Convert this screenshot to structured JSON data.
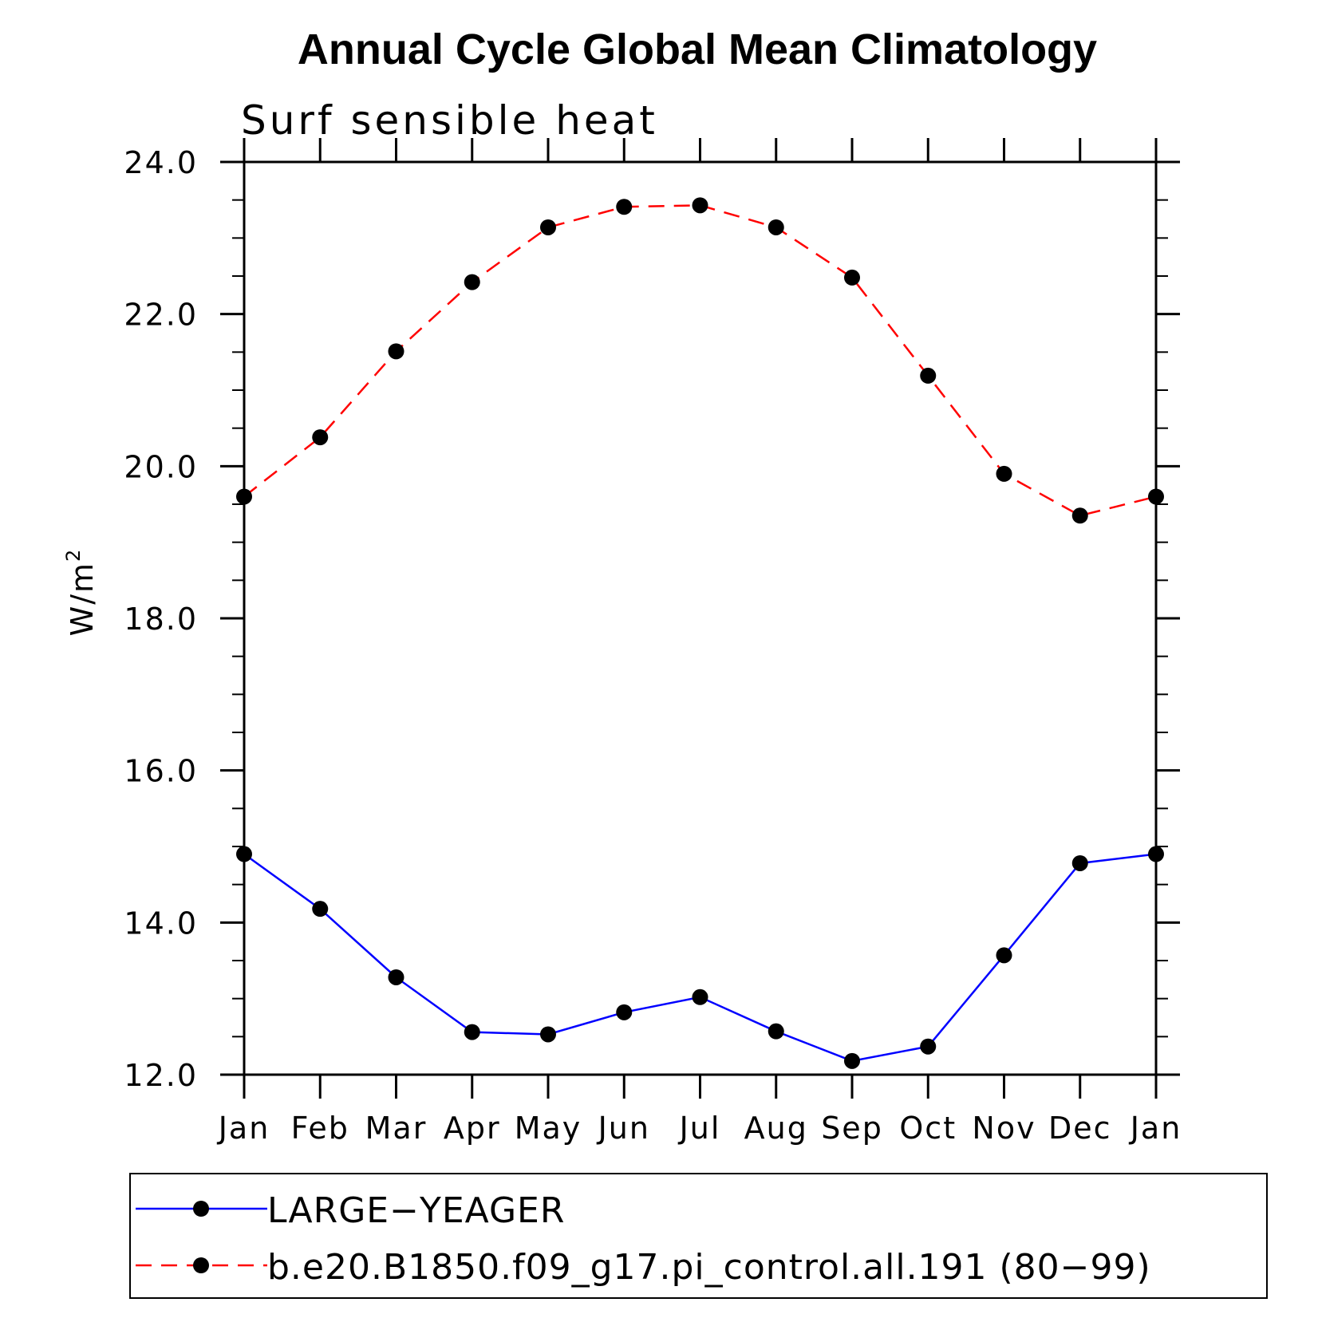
{
  "chart_data": {
    "type": "line",
    "title": "Annual Cycle Global Mean Climatology",
    "subtitle": "Surf sensible heat",
    "xlabel": "",
    "ylabel": "W/m",
    "ylabel_superscript": "2",
    "categories": [
      "Jan",
      "Feb",
      "Mar",
      "Apr",
      "May",
      "Jun",
      "Jul",
      "Aug",
      "Sep",
      "Oct",
      "Nov",
      "Dec",
      "Jan"
    ],
    "ylim": [
      12.0,
      24.0
    ],
    "y_ticks": [
      "12.0",
      "14.0",
      "16.0",
      "18.0",
      "20.0",
      "22.0",
      "24.0"
    ],
    "grid": false,
    "legend_position": "bottom",
    "series": [
      {
        "name": "LARGE−YEAGER",
        "color": "#0000ff",
        "line_style": "solid",
        "marker": "filled-circle",
        "values": [
          14.9,
          14.18,
          13.28,
          12.56,
          12.53,
          12.82,
          13.02,
          12.57,
          12.18,
          12.37,
          13.57,
          14.78,
          14.9
        ]
      },
      {
        "name": "b.e20.B1850.f09_g17.pi_control.all.191 (80−99)",
        "color": "#ff0000",
        "line_style": "dashed",
        "marker": "filled-circle",
        "values": [
          19.6,
          20.38,
          21.51,
          22.42,
          23.14,
          23.41,
          23.43,
          23.14,
          22.48,
          21.19,
          19.9,
          19.35,
          19.6
        ]
      }
    ]
  }
}
